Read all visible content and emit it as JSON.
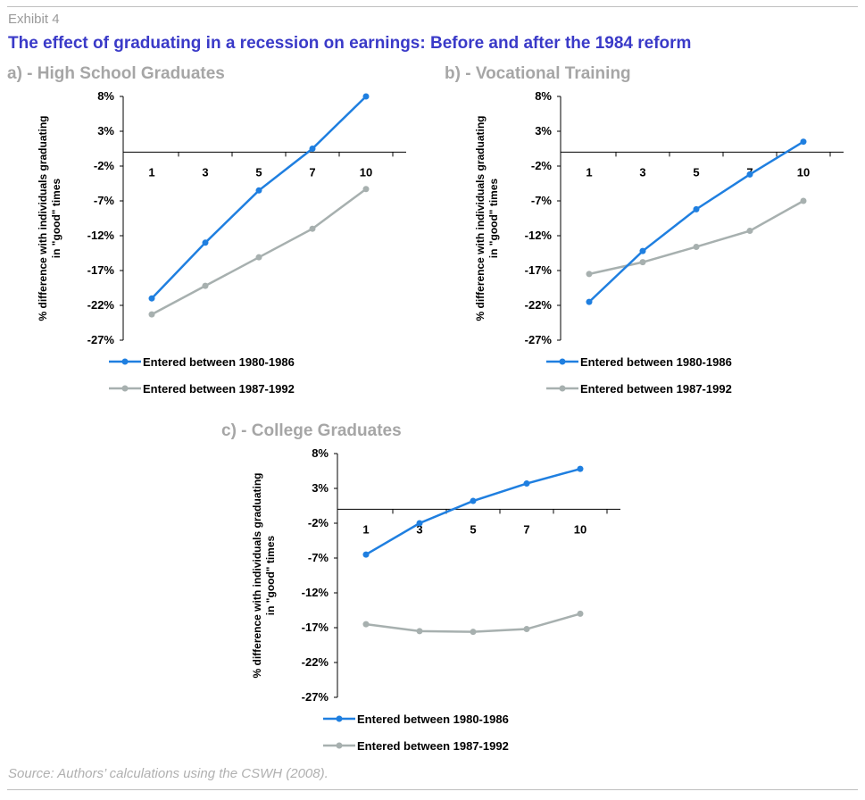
{
  "header": {
    "exhibit": "Exhibit 4",
    "title": "The effect of graduating in a recession on earnings: Before and after the 1984 reform"
  },
  "footer": {
    "source": "Source: Authors’ calculations using the CSWH (2008)."
  },
  "colors": {
    "series1": "#1f7fe0",
    "series2": "#a7b0af",
    "title": "#3a3ac8",
    "panel_title": "#a6a6a6"
  },
  "chart_data": [
    {
      "type": "line",
      "title": "a) - High School Graduates",
      "ylabel": [
        "% difference with individuals graduating",
        "in \"good\" times"
      ],
      "categories": [
        "1",
        "3",
        "5",
        "7",
        "10"
      ],
      "y_ticks": [
        "8%",
        "3%",
        "-2%",
        "-7%",
        "-12%",
        "-17%",
        "-22%",
        "-27%"
      ],
      "ylim": [
        -27,
        8
      ],
      "series": [
        {
          "name": "Entered between 1980-1986",
          "values": [
            -21,
            -13,
            -5.5,
            0.5,
            8
          ]
        },
        {
          "name": "Entered between 1987-1992",
          "values": [
            -23.3,
            -19.2,
            -15.1,
            -11,
            -5.3
          ]
        }
      ]
    },
    {
      "type": "line",
      "title": "b) - Vocational Training",
      "ylabel": [
        "% difference with individuals graduating",
        "in \"good\" times"
      ],
      "categories": [
        "1",
        "3",
        "5",
        "7",
        "10"
      ],
      "y_ticks": [
        "8%",
        "3%",
        "-2%",
        "-7%",
        "-12%",
        "-17%",
        "-22%",
        "-27%"
      ],
      "ylim": [
        -27,
        8
      ],
      "series": [
        {
          "name": "Entered between 1980-1986",
          "values": [
            -21.5,
            -14.2,
            -8.2,
            -3.2,
            1.5
          ]
        },
        {
          "name": "Entered between 1987-1992",
          "values": [
            -17.5,
            -15.8,
            -13.6,
            -11.3,
            -7
          ]
        }
      ]
    },
    {
      "type": "line",
      "title": "c) - College Graduates",
      "ylabel": [
        "% difference with individuals graduating",
        "in \"good\" times"
      ],
      "categories": [
        "1",
        "3",
        "5",
        "7",
        "10"
      ],
      "y_ticks": [
        "8%",
        "3%",
        "-2%",
        "-7%",
        "-12%",
        "-17%",
        "-22%",
        "-27%"
      ],
      "ylim": [
        -27,
        8
      ],
      "series": [
        {
          "name": "Entered between 1980-1986",
          "values": [
            -6.5,
            -2,
            1.2,
            3.7,
            5.8
          ]
        },
        {
          "name": "Entered between 1987-1992",
          "values": [
            -16.5,
            -17.5,
            -17.6,
            -17.2,
            -15
          ]
        }
      ]
    }
  ]
}
